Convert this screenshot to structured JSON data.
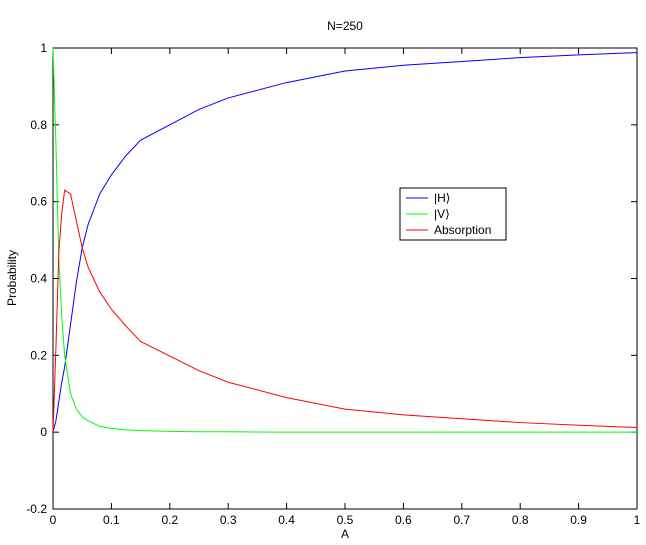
{
  "chart_data": {
    "type": "line",
    "title": "N=250",
    "x_label": "A",
    "y_label": "Probability",
    "x": [
      0,
      0.005,
      0.01,
      0.015,
      0.02,
      0.03,
      0.04,
      0.05,
      0.06,
      0.08,
      0.1,
      0.125,
      0.15,
      0.2,
      0.25,
      0.3,
      0.4,
      0.5,
      0.6,
      0.7,
      0.8,
      0.9,
      1
    ],
    "series": [
      {
        "name": "|H⟩",
        "color": "#0000ff",
        "values": [
          0,
          0.03,
          0.08,
          0.13,
          0.17,
          0.28,
          0.39,
          0.48,
          0.54,
          0.62,
          0.67,
          0.72,
          0.76,
          0.8,
          0.84,
          0.87,
          0.91,
          0.94,
          0.955,
          0.965,
          0.975,
          0.982,
          0.988
        ]
      },
      {
        "name": "|V⟩",
        "color": "#00ff00",
        "values": [
          1,
          0.75,
          0.45,
          0.3,
          0.2,
          0.1,
          0.06,
          0.04,
          0.03,
          0.015,
          0.01,
          0.006,
          0.004,
          0.002,
          0.001,
          0.001,
          0,
          0,
          0,
          0,
          0,
          0,
          0
        ]
      },
      {
        "name": "Absorption",
        "color": "#ff0000",
        "values": [
          0,
          0.22,
          0.47,
          0.57,
          0.63,
          0.62,
          0.55,
          0.48,
          0.43,
          0.365,
          0.32,
          0.276,
          0.236,
          0.198,
          0.16,
          0.13,
          0.09,
          0.06,
          0.045,
          0.035,
          0.025,
          0.018,
          0.012
        ]
      }
    ],
    "xlim": [
      0,
      1
    ],
    "ylim": [
      -0.2,
      1
    ],
    "xticks": [
      0,
      0.1,
      0.2,
      0.3,
      0.4,
      0.5,
      0.6,
      0.7,
      0.8,
      0.9,
      1
    ],
    "yticks": [
      -0.2,
      0,
      0.2,
      0.4,
      0.6,
      0.8,
      1
    ],
    "legend": "upper-right",
    "grid": false
  }
}
